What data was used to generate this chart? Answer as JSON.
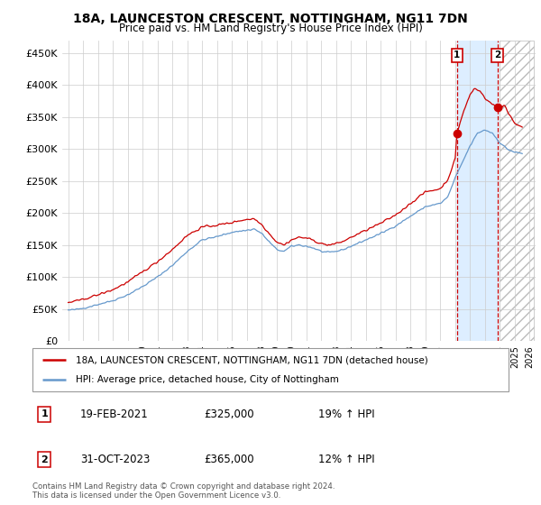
{
  "title": "18A, LAUNCESTON CRESCENT, NOTTINGHAM, NG11 7DN",
  "subtitle": "Price paid vs. HM Land Registry's House Price Index (HPI)",
  "ylabel_ticks": [
    "£0",
    "£50K",
    "£100K",
    "£150K",
    "£200K",
    "£250K",
    "£300K",
    "£350K",
    "£400K",
    "£450K"
  ],
  "ytick_values": [
    0,
    50000,
    100000,
    150000,
    200000,
    250000,
    300000,
    350000,
    400000,
    450000
  ],
  "ylim": [
    0,
    470000
  ],
  "red_color": "#cc0000",
  "blue_color": "#6699cc",
  "shade_color": "#ddeeff",
  "legend_label_red": "18A, LAUNCESTON CRESCENT, NOTTINGHAM, NG11 7DN (detached house)",
  "legend_label_blue": "HPI: Average price, detached house, City of Nottingham",
  "annotation1_label": "1",
  "annotation1_date": "19-FEB-2021",
  "annotation1_price": "£325,000",
  "annotation1_hpi": "19% ↑ HPI",
  "annotation2_label": "2",
  "annotation2_date": "31-OCT-2023",
  "annotation2_price": "£365,000",
  "annotation2_hpi": "12% ↑ HPI",
  "footnote": "Contains HM Land Registry data © Crown copyright and database right 2024.\nThis data is licensed under the Open Government Licence v3.0.",
  "sale1_x": 2021.12,
  "sale1_y": 325000,
  "sale2_x": 2023.83,
  "sale2_y": 365000,
  "vline1_x": 2021.12,
  "vline2_x": 2023.83,
  "shade_x_start": 2021.12,
  "shade_x_end": 2023.83,
  "hatch_x_start": 2024.0,
  "hatch_x_end": 2026.3,
  "xlim_left": 1994.6,
  "xlim_right": 2026.4
}
